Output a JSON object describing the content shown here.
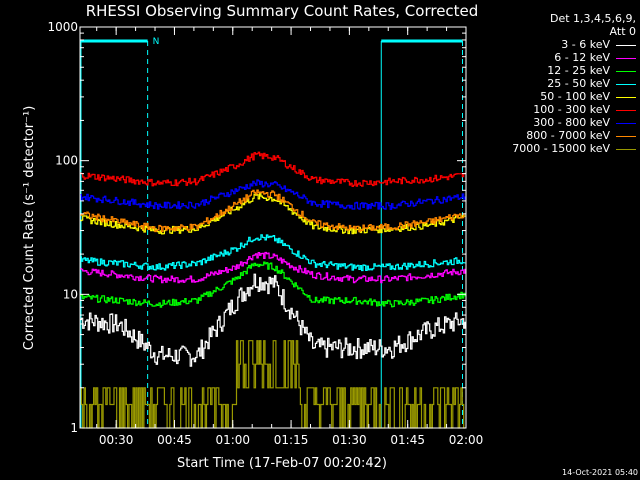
{
  "chart_data": {
    "type": "line",
    "title": "RHESSI Observing Summary Count Rates, Corrected",
    "xlabel": "Start Time (17-Feb-07 00:20:42)",
    "ylabel": "Corrected Count Rate (s⁻¹ detector⁻¹)",
    "yscale": "log",
    "ylim": [
      1,
      1000
    ],
    "xlim_minutes_after_start": [
      0,
      99.3
    ],
    "x_ticks": [
      "00:30",
      "00:45",
      "01:00",
      "01:15",
      "01:30",
      "01:45",
      "02:00"
    ],
    "y_ticks": [
      "1",
      "10",
      "100",
      "1000"
    ],
    "grid": false,
    "legend_placement": "right",
    "legend_header": [
      "Det 1,3,4,5,6,9,",
      "Att 0"
    ],
    "night_marker_label": "N",
    "x_minutes": [
      0,
      10,
      20,
      30,
      40,
      45,
      50,
      55,
      60,
      70,
      80,
      90,
      99
    ],
    "series": [
      {
        "name": "3 - 6 keV",
        "color": "#ffffff",
        "values": [
          6.5,
          6.0,
          3.5,
          3.5,
          9.0,
          13.0,
          12.0,
          7.0,
          4.0,
          4.0,
          4.0,
          5.5,
          6.5
        ]
      },
      {
        "name": "6 - 12 keV",
        "color": "#ff00ff",
        "values": [
          15,
          14,
          13,
          13,
          16,
          20,
          19,
          16,
          14,
          13,
          13,
          14,
          15
        ]
      },
      {
        "name": "12 - 25 keV",
        "color": "#00ff00",
        "values": [
          9.5,
          9,
          8.5,
          9,
          13,
          17,
          16,
          12,
          9,
          9,
          8.5,
          9,
          10
        ]
      },
      {
        "name": "25 - 50 keV",
        "color": "#00ffff",
        "values": [
          18,
          17,
          16,
          17,
          22,
          27,
          26,
          21,
          17,
          16,
          16,
          17,
          18
        ]
      },
      {
        "name": "50 - 100 keV",
        "color": "#ffff00",
        "values": [
          37,
          33,
          30,
          31,
          44,
          54,
          52,
          41,
          32,
          30,
          31,
          33,
          38
        ]
      },
      {
        "name": "100 - 300 keV",
        "color": "#ff0000",
        "values": [
          78,
          73,
          68,
          70,
          92,
          110,
          106,
          87,
          72,
          68,
          70,
          73,
          78
        ]
      },
      {
        "name": "300 - 800 keV",
        "color": "#0000ff",
        "values": [
          54,
          50,
          46,
          47,
          60,
          68,
          66,
          57,
          48,
          46,
          46,
          50,
          54
        ]
      },
      {
        "name": "800 - 7000 keV",
        "color": "#ff8800",
        "values": [
          40,
          35,
          31,
          32,
          47,
          58,
          56,
          44,
          34,
          31,
          32,
          35,
          40
        ]
      },
      {
        "name": "7000 - 15000 keV",
        "color": "#999900",
        "values": [
          1.8,
          1.6,
          1.5,
          1.6,
          2.5,
          4.5,
          4.5,
          3.0,
          1.6,
          1.5,
          1.6,
          1.6,
          1.8
        ]
      }
    ]
  },
  "timestamp": "14-Oct-2021 05:40"
}
